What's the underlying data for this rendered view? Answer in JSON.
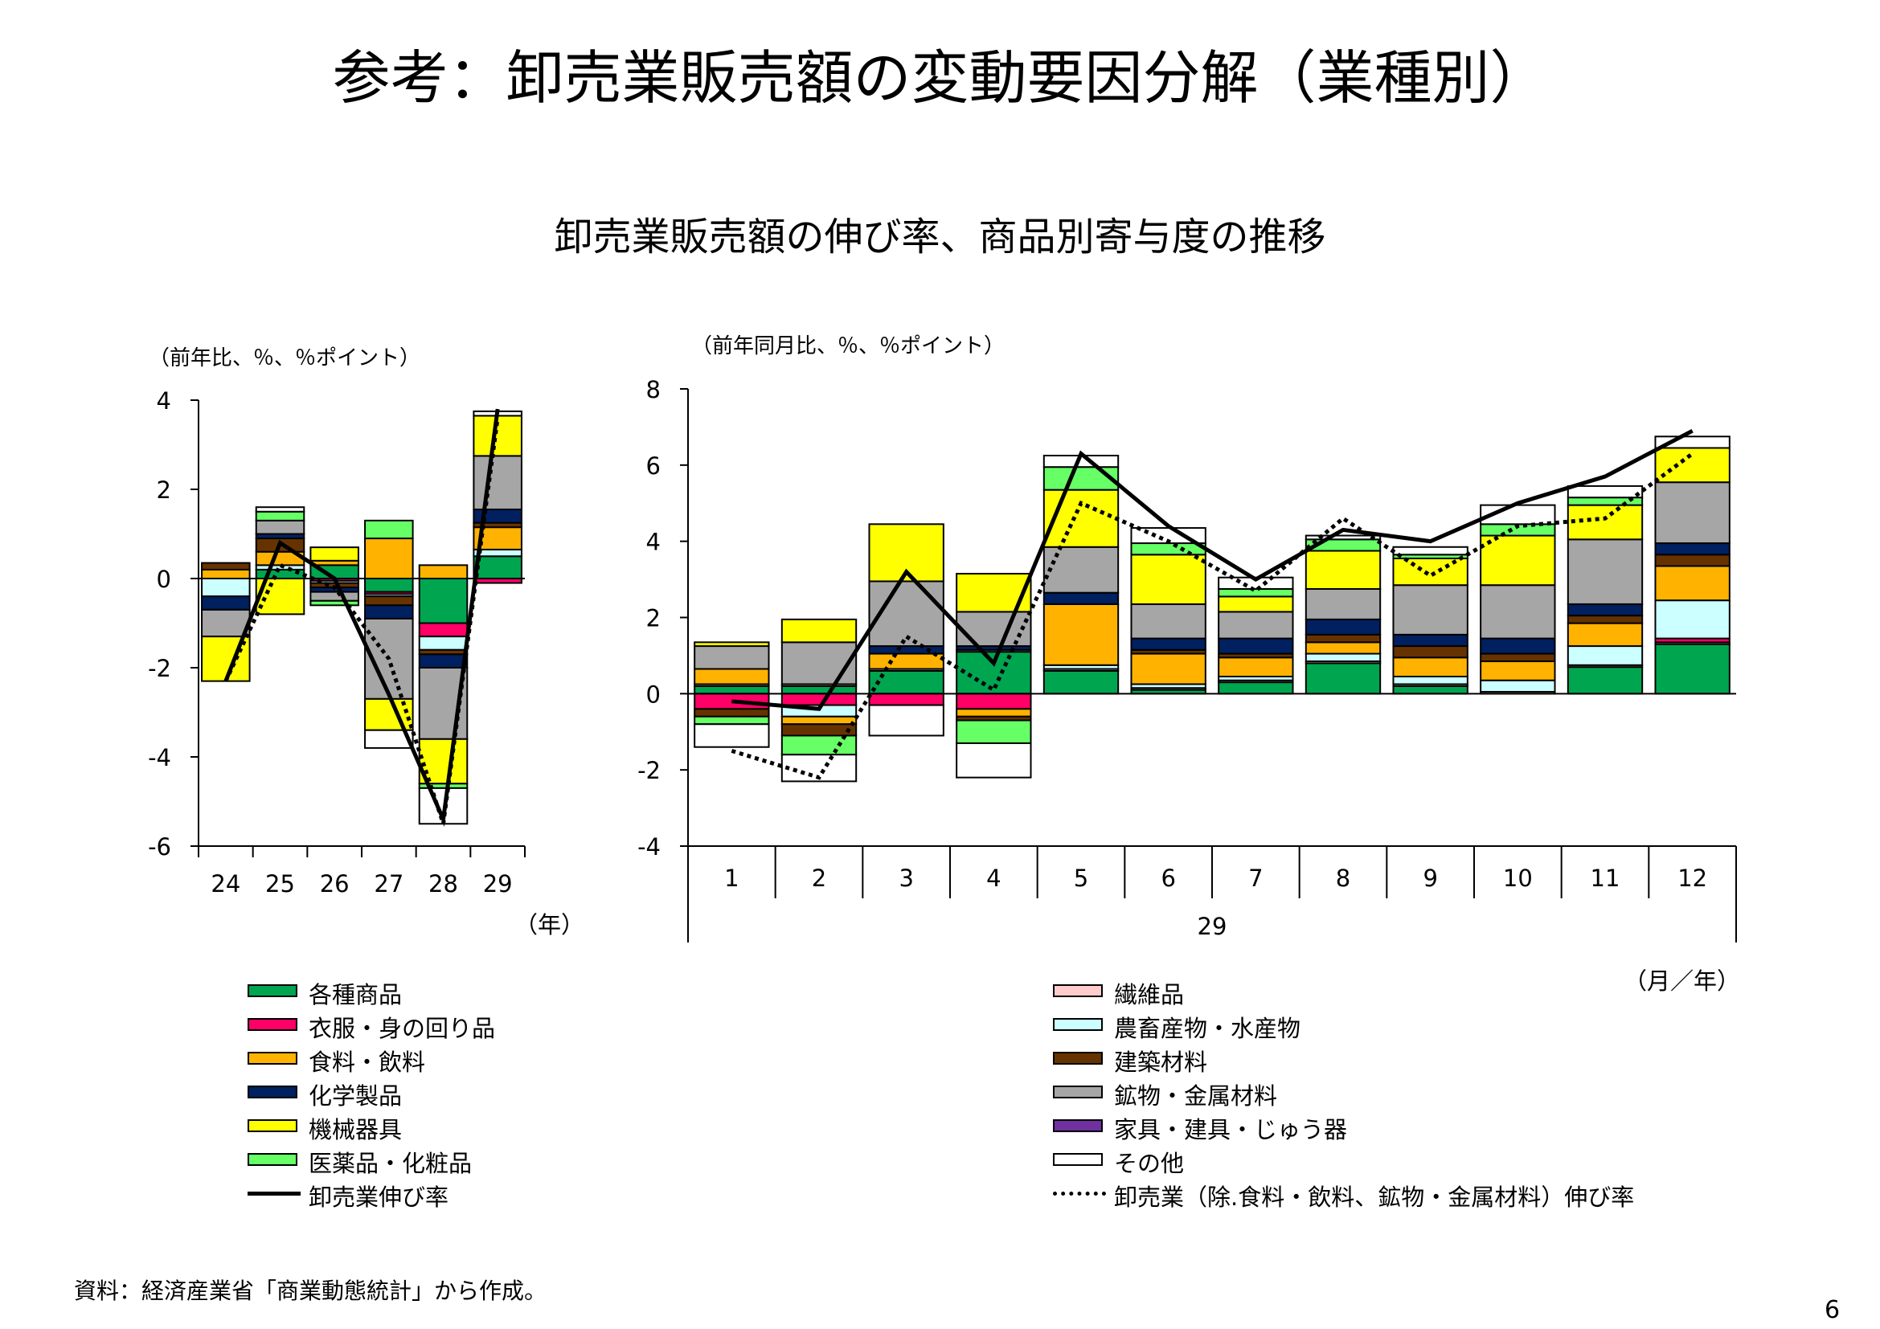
{
  "slide": {
    "title": "参考：卸売業販売額の変動要因分解（業種別）",
    "chart_title": "卸売業販売額の伸び率、商品別寄与度の推移",
    "left_unit": "（前年比、％、％ポイント）",
    "right_unit": "（前年同月比、％、％ポイント）",
    "left_xunit": "（年）",
    "right_xunit": "（月／年）",
    "right_year_label": "29",
    "source": "資料：経済産業省「商業動態統計」から作成。",
    "page_number": "6"
  },
  "legend": {
    "left_column": [
      {
        "label": "各種商品",
        "color": "#00A550",
        "kind": "box"
      },
      {
        "label": "衣服・身の回り品",
        "color": "#FF0066",
        "kind": "box"
      },
      {
        "label": "食料・飲料",
        "color": "#FFB300",
        "kind": "box"
      },
      {
        "label": "化学製品",
        "color": "#002060",
        "kind": "box"
      },
      {
        "label": "機械器具",
        "color": "#FFFF00",
        "kind": "box"
      },
      {
        "label": "医薬品・化粧品",
        "color": "#66FF66",
        "kind": "box"
      },
      {
        "label": "卸売業伸び率",
        "color": "#000000",
        "kind": "solid"
      }
    ],
    "right_column": [
      {
        "label": "繊維品",
        "color": "#FFCCCC",
        "kind": "box"
      },
      {
        "label": "農畜産物・水産物",
        "color": "#CCFFFF",
        "kind": "box"
      },
      {
        "label": "建築材料",
        "color": "#663300",
        "kind": "box"
      },
      {
        "label": "鉱物・金属材料",
        "color": "#A6A6A6",
        "kind": "box"
      },
      {
        "label": "家具・建具・じゅう器",
        "color": "#7030A0",
        "kind": "box"
      },
      {
        "label": "その他",
        "color": "#FFFFFF",
        "kind": "box"
      },
      {
        "label": "卸売業（除.食料・飲料、鉱物・金属材料）伸び率",
        "color": "#000000",
        "kind": "dotted"
      }
    ]
  },
  "chart_data": [
    {
      "type": "bar",
      "stacked": true,
      "categories": [
        "24",
        "25",
        "26",
        "27",
        "28",
        "29"
      ],
      "ylim": [
        -6,
        4
      ],
      "yticks": [
        "4",
        "2",
        "0",
        "-2",
        "-4",
        "-6"
      ],
      "series": [
        {
          "name": "各種商品",
          "color": "#00A550",
          "values": [
            0.0,
            0.2,
            0.3,
            -0.3,
            -1.0,
            0.5
          ]
        },
        {
          "name": "繊維品",
          "color": "#FFCCCC",
          "values": [
            0.0,
            0.0,
            0.0,
            0.0,
            0.0,
            0.0
          ]
        },
        {
          "name": "衣服・身の回り品",
          "color": "#FF0066",
          "values": [
            0.0,
            0.0,
            -0.05,
            -0.05,
            -0.3,
            -0.1
          ]
        },
        {
          "name": "農畜産物・水産物",
          "color": "#CCFFFF",
          "values": [
            -0.4,
            0.1,
            -0.05,
            -0.05,
            -0.3,
            0.15
          ]
        },
        {
          "name": "食料・飲料",
          "color": "#FFB300",
          "values": [
            0.2,
            0.3,
            0.1,
            0.9,
            0.3,
            0.5
          ]
        },
        {
          "name": "建築材料",
          "color": "#663300",
          "values": [
            0.15,
            0.3,
            -0.1,
            -0.2,
            -0.1,
            0.1
          ]
        },
        {
          "name": "化学製品",
          "color": "#002060",
          "values": [
            -0.3,
            0.1,
            -0.1,
            -0.3,
            -0.3,
            0.3
          ]
        },
        {
          "name": "鉱物・金属材料",
          "color": "#A6A6A6",
          "values": [
            -0.6,
            0.3,
            -0.2,
            -1.8,
            -1.6,
            1.2
          ]
        },
        {
          "name": "家具・建具・じゅう器",
          "color": "#7030A0",
          "values": [
            0.0,
            0.0,
            0.0,
            0.0,
            0.0,
            0.0
          ]
        },
        {
          "name": "機械器具",
          "color": "#FFFF00",
          "values": [
            -1.0,
            -0.8,
            0.3,
            -0.7,
            -1.0,
            0.9
          ]
        },
        {
          "name": "医薬品・化粧品",
          "color": "#66FF66",
          "values": [
            0.0,
            0.2,
            -0.1,
            0.4,
            -0.1,
            0.0
          ]
        },
        {
          "name": "その他",
          "color": "#FFFFFF",
          "values": [
            0.0,
            0.1,
            0.0,
            -0.4,
            -0.8,
            0.1
          ]
        }
      ],
      "lines": [
        {
          "name": "卸売業伸び率",
          "style": "solid",
          "values": [
            -2.3,
            0.8,
            0.0,
            -2.6,
            -5.4,
            3.8
          ]
        },
        {
          "name": "卸売業（除.食料・飲料、鉱物・金属材料）伸び率",
          "style": "dotted",
          "values": [
            -2.3,
            0.3,
            -0.2,
            -1.8,
            -5.5,
            3.6
          ]
        }
      ]
    },
    {
      "type": "bar",
      "stacked": true,
      "categories": [
        "1",
        "2",
        "3",
        "4",
        "5",
        "6",
        "7",
        "8",
        "9",
        "10",
        "11",
        "12"
      ],
      "ylim": [
        -4,
        8
      ],
      "yticks": [
        "8",
        "6",
        "4",
        "2",
        "0",
        "-2",
        "-4"
      ],
      "series": [
        {
          "name": "各種商品",
          "color": "#00A550",
          "values": [
            0.2,
            0.2,
            0.6,
            1.1,
            0.6,
            0.1,
            0.3,
            0.8,
            0.2,
            0.0,
            0.7,
            1.3
          ]
        },
        {
          "name": "繊維品",
          "color": "#FFCCCC",
          "values": [
            0.05,
            0.05,
            0.05,
            0.05,
            0.05,
            0.05,
            0.05,
            0.05,
            0.05,
            0.05,
            0.05,
            0.05
          ]
        },
        {
          "name": "衣服・身の回り品",
          "color": "#FF0066",
          "values": [
            -0.4,
            -0.3,
            -0.3,
            -0.4,
            0.0,
            0.0,
            0.0,
            0.0,
            0.0,
            0.0,
            0.0,
            0.1
          ]
        },
        {
          "name": "農畜産物・水産物",
          "color": "#CCFFFF",
          "values": [
            0.0,
            -0.3,
            0.0,
            0.0,
            0.1,
            0.1,
            0.1,
            0.2,
            0.2,
            0.3,
            0.5,
            1.0
          ]
        },
        {
          "name": "食料・飲料",
          "color": "#FFB300",
          "values": [
            0.4,
            -0.2,
            0.4,
            -0.2,
            1.6,
            0.8,
            0.5,
            0.3,
            0.5,
            0.5,
            0.6,
            0.9
          ]
        },
        {
          "name": "建築材料",
          "color": "#663300",
          "values": [
            -0.2,
            -0.3,
            0.0,
            -0.1,
            0.0,
            0.1,
            0.1,
            0.2,
            0.3,
            0.2,
            0.2,
            0.3
          ]
        },
        {
          "name": "化学製品",
          "color": "#002060",
          "values": [
            0.0,
            0.0,
            0.2,
            0.1,
            0.3,
            0.3,
            0.4,
            0.4,
            0.3,
            0.4,
            0.3,
            0.3
          ]
        },
        {
          "name": "鉱物・金属材料",
          "color": "#A6A6A6",
          "values": [
            0.6,
            1.1,
            1.7,
            0.9,
            1.2,
            0.9,
            0.7,
            0.8,
            1.3,
            1.4,
            1.7,
            1.6
          ]
        },
        {
          "name": "家具・建具・じゅう器",
          "color": "#7030A0",
          "values": [
            0.0,
            0.0,
            0.0,
            0.0,
            0.0,
            0.0,
            0.0,
            0.0,
            0.0,
            0.0,
            0.0,
            0.0
          ]
        },
        {
          "name": "機械器具",
          "color": "#FFFF00",
          "values": [
            0.1,
            0.6,
            1.5,
            1.0,
            1.5,
            1.3,
            0.4,
            1.0,
            0.7,
            1.3,
            0.9,
            0.9
          ]
        },
        {
          "name": "医薬品・化粧品",
          "color": "#66FF66",
          "values": [
            -0.2,
            -0.5,
            0.0,
            -0.6,
            0.6,
            0.3,
            0.2,
            0.3,
            0.1,
            0.3,
            0.2,
            0.0
          ]
        },
        {
          "name": "その他",
          "color": "#FFFFFF",
          "values": [
            -0.6,
            -0.7,
            -0.8,
            -0.9,
            0.3,
            0.4,
            0.3,
            0.1,
            0.2,
            0.5,
            0.3,
            0.3
          ]
        }
      ],
      "lines": [
        {
          "name": "卸売業伸び率",
          "style": "solid",
          "values": [
            -0.2,
            -0.4,
            3.2,
            0.8,
            6.3,
            4.4,
            3.0,
            4.3,
            4.0,
            5.0,
            5.7,
            6.9
          ]
        },
        {
          "name": "卸売業（除.食料・飲料、鉱物・金属材料）伸び率",
          "style": "dotted",
          "values": [
            -1.5,
            -2.2,
            1.5,
            0.1,
            5.0,
            4.0,
            2.7,
            4.6,
            3.1,
            4.4,
            4.6,
            6.3
          ]
        }
      ]
    }
  ]
}
